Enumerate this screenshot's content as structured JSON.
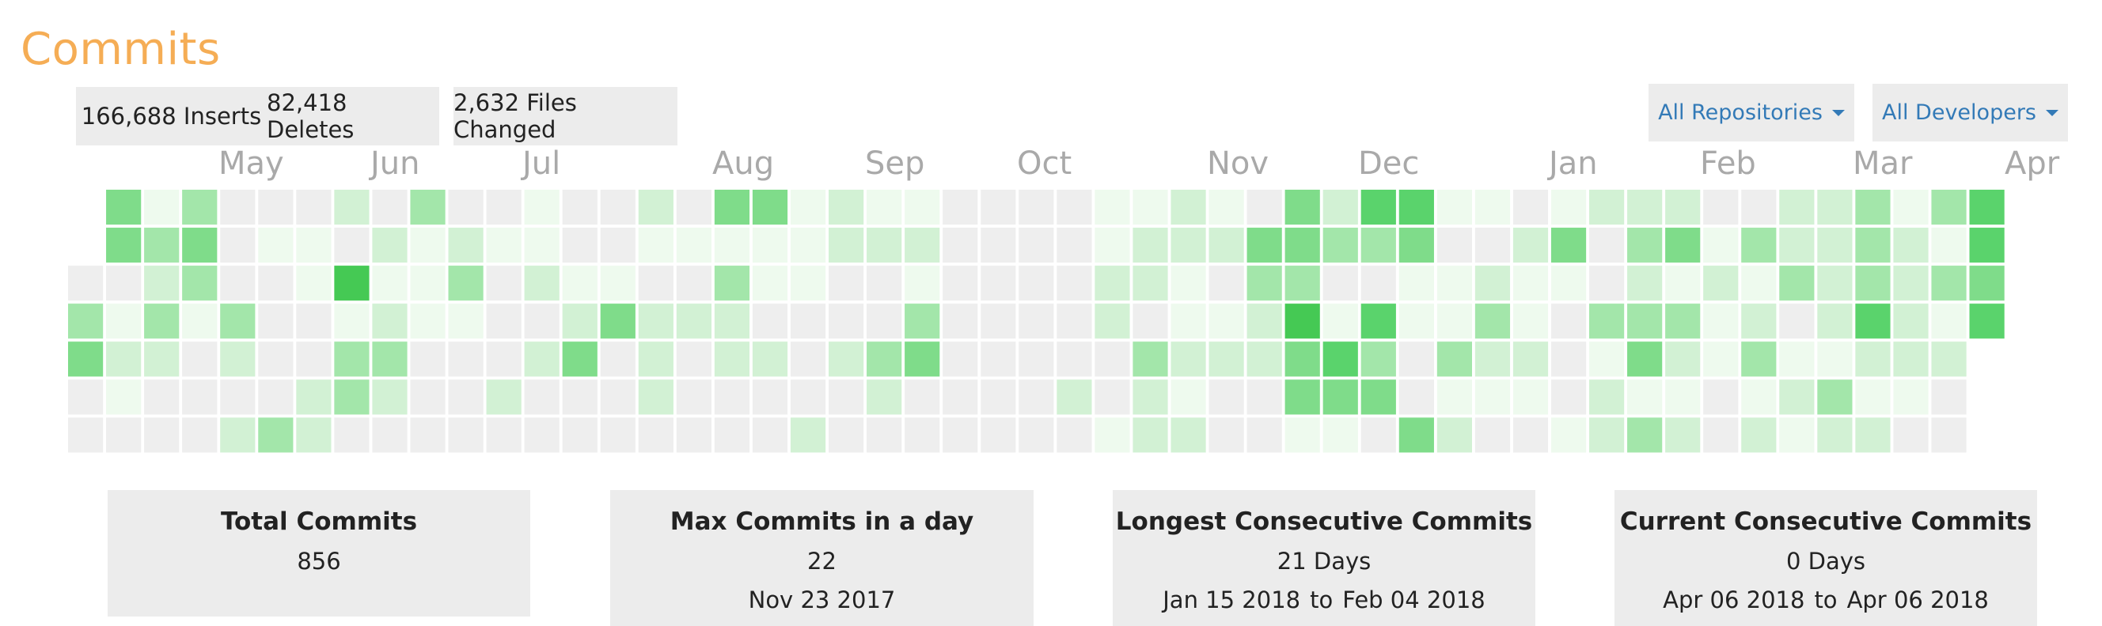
{
  "header": {
    "title": "Commits"
  },
  "stats": {
    "inserts": "166,688 Inserts",
    "deletes": "82,418 Deletes",
    "files_changed": "2,632 Files Changed"
  },
  "filters": {
    "repositories": "All Repositories",
    "developers": "All Developers"
  },
  "months": [
    "May",
    "Jun",
    "Jul",
    "Aug",
    "Sep",
    "Oct",
    "Nov",
    "Dec",
    "Jan",
    "Feb",
    "Mar",
    "Apr"
  ],
  "colors": {
    "title": "#f5ad55",
    "link": "#337ab7",
    "levels": [
      "#eeeeee",
      "#eefaee",
      "#d2f1d4",
      "#a3e6aa",
      "#7fdc8a",
      "#5ad36c",
      "#45c954",
      "#2eaa3c"
    ]
  },
  "heatmap": {
    "first_row_start_col": 1,
    "last_week_rows": 4,
    "weeks": [
      [
        0,
        1,
        0,
        3,
        4,
        0,
        0
      ],
      [
        4,
        4,
        0,
        1,
        2,
        1,
        0
      ],
      [
        1,
        3,
        2,
        3,
        2,
        0,
        0
      ],
      [
        3,
        4,
        3,
        1,
        0,
        0,
        0
      ],
      [
        0,
        0,
        0,
        3,
        2,
        0,
        2
      ],
      [
        0,
        1,
        0,
        0,
        0,
        0,
        3
      ],
      [
        0,
        1,
        1,
        0,
        0,
        2,
        2
      ],
      [
        2,
        0,
        6,
        1,
        3,
        3,
        0
      ],
      [
        0,
        2,
        1,
        2,
        3,
        2,
        0
      ],
      [
        3,
        1,
        1,
        1,
        0,
        0,
        0
      ],
      [
        0,
        2,
        3,
        1,
        0,
        0,
        0
      ],
      [
        0,
        1,
        0,
        0,
        0,
        2,
        0
      ],
      [
        1,
        1,
        2,
        0,
        2,
        0,
        0
      ],
      [
        0,
        0,
        1,
        2,
        4,
        0,
        0
      ],
      [
        0,
        0,
        1,
        4,
        0,
        0,
        0
      ],
      [
        2,
        1,
        0,
        2,
        2,
        2,
        0
      ],
      [
        0,
        1,
        0,
        2,
        0,
        0,
        0
      ],
      [
        4,
        1,
        3,
        2,
        2,
        0,
        0
      ],
      [
        4,
        1,
        1,
        0,
        2,
        0,
        0
      ],
      [
        1,
        1,
        1,
        0,
        0,
        0,
        2
      ],
      [
        2,
        2,
        0,
        0,
        2,
        0,
        0
      ],
      [
        1,
        2,
        0,
        0,
        3,
        2,
        0
      ],
      [
        1,
        2,
        1,
        3,
        4,
        0,
        0
      ],
      [
        0,
        0,
        0,
        0,
        0,
        0,
        0
      ],
      [
        0,
        0,
        0,
        0,
        0,
        0,
        0
      ],
      [
        0,
        0,
        0,
        0,
        0,
        0,
        0
      ],
      [
        0,
        0,
        0,
        0,
        0,
        2,
        0
      ],
      [
        1,
        1,
        2,
        2,
        0,
        0,
        1
      ],
      [
        1,
        2,
        2,
        0,
        3,
        2,
        2
      ],
      [
        2,
        2,
        1,
        1,
        2,
        1,
        2
      ],
      [
        1,
        2,
        0,
        1,
        2,
        0,
        0
      ],
      [
        0,
        4,
        3,
        2,
        2,
        0,
        0
      ],
      [
        4,
        4,
        3,
        6,
        4,
        4,
        1
      ],
      [
        2,
        3,
        0,
        1,
        5,
        4,
        1
      ],
      [
        5,
        3,
        0,
        5,
        3,
        4,
        0
      ],
      [
        5,
        4,
        1,
        1,
        0,
        0,
        4
      ],
      [
        1,
        0,
        1,
        1,
        3,
        1,
        2
      ],
      [
        1,
        0,
        2,
        3,
        2,
        1,
        0
      ],
      [
        0,
        2,
        1,
        1,
        2,
        1,
        0
      ],
      [
        1,
        4,
        1,
        0,
        0,
        0,
        1
      ],
      [
        2,
        0,
        0,
        3,
        1,
        2,
        2
      ],
      [
        2,
        3,
        2,
        3,
        4,
        1,
        3
      ],
      [
        2,
        4,
        1,
        3,
        2,
        1,
        2
      ],
      [
        0,
        1,
        2,
        1,
        1,
        0,
        0
      ],
      [
        0,
        3,
        1,
        2,
        3,
        1,
        2
      ],
      [
        2,
        2,
        3,
        0,
        1,
        2,
        1
      ],
      [
        2,
        2,
        2,
        2,
        1,
        3,
        2
      ],
      [
        3,
        3,
        3,
        5,
        2,
        1,
        2
      ],
      [
        1,
        2,
        2,
        2,
        2,
        1,
        0
      ],
      [
        3,
        1,
        3,
        1,
        2,
        0,
        0
      ],
      [
        5,
        5,
        4,
        5,
        0,
        0,
        0
      ]
    ]
  },
  "cards": {
    "total": {
      "title": "Total Commits",
      "value": "856"
    },
    "max": {
      "title": "Max Commits in a day",
      "value": "22",
      "date": "Nov 23 2017"
    },
    "longest": {
      "title": "Longest Consecutive Commits",
      "value": "21 Days",
      "from": "Jan 15 2018",
      "sep": "to",
      "to": "Feb 04 2018"
    },
    "current": {
      "title": "Current Consecutive Commits",
      "value": "0 Days",
      "from": "Apr 06 2018",
      "sep": "to",
      "to": "Apr 06 2018"
    }
  }
}
